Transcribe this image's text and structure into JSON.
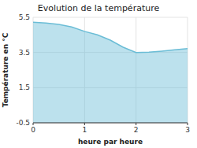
{
  "chart_data": {
    "type": "area",
    "title": "Evolution de la température",
    "xlabel": "heure par heure",
    "ylabel": "Température en °C",
    "x": [
      0,
      0.25,
      0.5,
      0.75,
      1.0,
      1.25,
      1.5,
      1.75,
      2.0,
      2.25,
      2.5,
      2.75,
      3.0
    ],
    "values": [
      5.22,
      5.18,
      5.1,
      4.95,
      4.7,
      4.5,
      4.2,
      3.8,
      3.5,
      3.52,
      3.58,
      3.65,
      3.72
    ],
    "xlim": [
      0,
      3
    ],
    "ylim": [
      -0.5,
      5.5
    ],
    "xticks": [
      0,
      1,
      2,
      3
    ],
    "yticks": [
      -0.5,
      1.5,
      3.5,
      5.5
    ],
    "color": "#6bbdd6",
    "grid": true
  }
}
